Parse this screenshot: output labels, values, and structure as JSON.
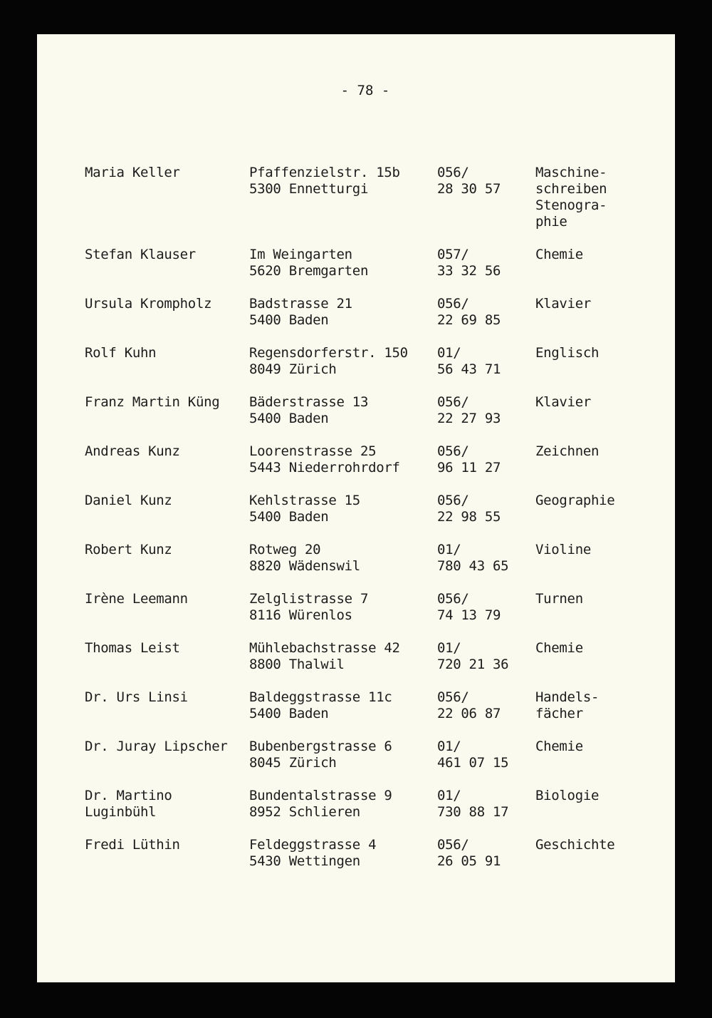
{
  "page_number": "- 78 -",
  "entries": [
    {
      "name": [
        "Maria Keller"
      ],
      "address": [
        "Pfaffenzielstr. 15b",
        "5300 Ennetturgi"
      ],
      "phone": [
        "056/",
        "28 30 57"
      ],
      "subject": [
        "Maschine-",
        "schreiben",
        "Stenogra-",
        "phie"
      ]
    },
    {
      "name": [
        "Stefan Klauser"
      ],
      "address": [
        "Im Weingarten",
        "5620 Bremgarten"
      ],
      "phone": [
        "057/",
        "33 32 56"
      ],
      "subject": [
        "Chemie"
      ]
    },
    {
      "name": [
        "Ursula Krompholz"
      ],
      "address": [
        "Badstrasse 21",
        "5400 Baden"
      ],
      "phone": [
        "056/",
        "22 69 85"
      ],
      "subject": [
        "Klavier"
      ]
    },
    {
      "name": [
        "Rolf Kuhn"
      ],
      "address": [
        "Regensdorferstr. 150",
        "8049 Zürich"
      ],
      "phone": [
        "01/",
        "56 43 71"
      ],
      "subject": [
        "Englisch"
      ]
    },
    {
      "name": [
        "Franz Martin Küng"
      ],
      "address": [
        "Bäderstrasse 13",
        "5400 Baden"
      ],
      "phone": [
        "056/",
        "22 27 93"
      ],
      "subject": [
        "Klavier"
      ]
    },
    {
      "name": [
        "Andreas Kunz"
      ],
      "address": [
        "Loorenstrasse 25",
        "5443 Niederrohrdorf"
      ],
      "phone": [
        "056/",
        "96 11 27"
      ],
      "subject": [
        "Zeichnen"
      ]
    },
    {
      "name": [
        "Daniel Kunz"
      ],
      "address": [
        "Kehlstrasse 15",
        "5400 Baden"
      ],
      "phone": [
        "056/",
        "22 98 55"
      ],
      "subject": [
        "Geographie"
      ]
    },
    {
      "name": [
        "Robert Kunz"
      ],
      "address": [
        "Rotweg 20",
        "8820 Wädenswil"
      ],
      "phone": [
        "01/",
        "780 43 65"
      ],
      "subject": [
        "Violine"
      ]
    },
    {
      "name": [
        "Irène Leemann"
      ],
      "address": [
        "Zelglistrasse 7",
        "8116 Würenlos"
      ],
      "phone": [
        "056/",
        "74 13 79"
      ],
      "subject": [
        "Turnen"
      ]
    },
    {
      "name": [
        "Thomas Leist"
      ],
      "address": [
        "Mühlebachstrasse 42",
        "8800 Thalwil"
      ],
      "phone": [
        "01/",
        "720 21 36"
      ],
      "subject": [
        "Chemie"
      ]
    },
    {
      "name": [
        "Dr. Urs Linsi"
      ],
      "address": [
        "Baldeggstrasse 11c",
        "5400 Baden"
      ],
      "phone": [
        "056/",
        "22 06 87"
      ],
      "subject": [
        "Handels-",
        "fächer"
      ]
    },
    {
      "name": [
        "Dr. Juray Lipscher"
      ],
      "address": [
        "Bubenbergstrasse 6",
        "8045 Zürich"
      ],
      "phone": [
        "01/",
        "461 07 15"
      ],
      "subject": [
        "Chemie"
      ]
    },
    {
      "name": [
        "Dr. Martino",
        "Luginbühl"
      ],
      "address": [
        "Bundentalstrasse 9",
        "8952 Schlieren"
      ],
      "phone": [
        "01/",
        "730 88 17"
      ],
      "subject": [
        "Biologie"
      ]
    },
    {
      "name": [
        "Fredi Lüthin"
      ],
      "address": [
        "Feldeggstrasse 4",
        "5430 Wettingen"
      ],
      "phone": [
        "056/",
        "26 05 91"
      ],
      "subject": [
        "Geschichte"
      ]
    }
  ]
}
